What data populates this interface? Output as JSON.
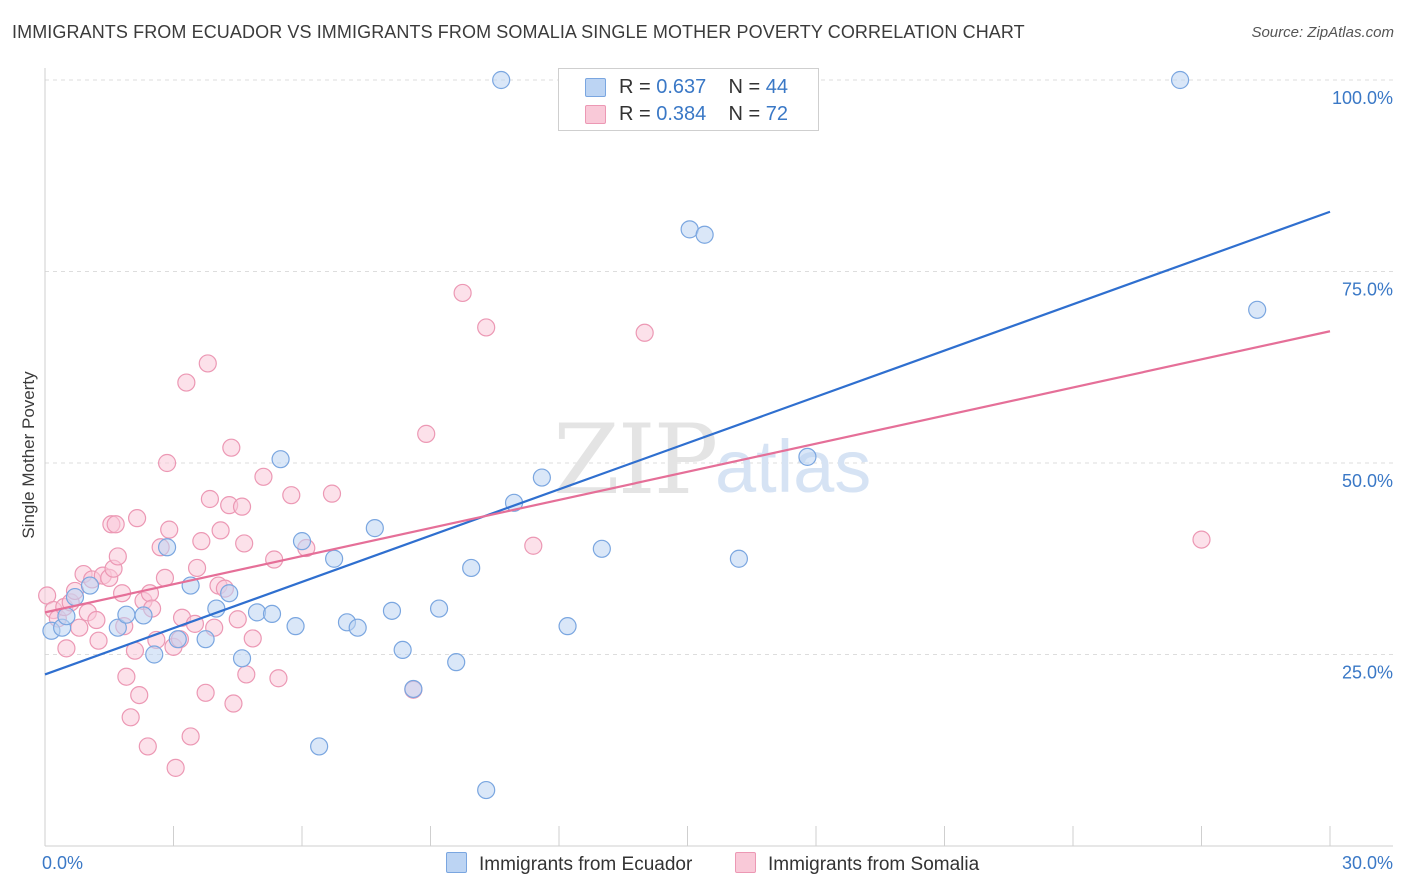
{
  "title": "IMMIGRANTS FROM ECUADOR VS IMMIGRANTS FROM SOMALIA SINGLE MOTHER POVERTY CORRELATION CHART",
  "source": "Source: ZipAtlas.com",
  "watermark": {
    "zip": "ZIP",
    "atlas": "atlas"
  },
  "legend": {
    "r_label": "R =",
    "n_label": "N =",
    "ecuador": {
      "r": "0.637",
      "n": "44"
    },
    "somalia": {
      "r": "0.384",
      "n": "72"
    }
  },
  "bottom_legend": {
    "ecuador": "Immigrants from Ecuador",
    "somalia": "Immigrants from Somalia"
  },
  "colors": {
    "ecuador_fill": "#bcd4f3",
    "ecuador_stroke": "#7aa6e0",
    "ecuador_line": "#2f6fcf",
    "somalia_fill": "#f9c9d8",
    "somalia_stroke": "#ec98b4",
    "somalia_line": "#e56f98",
    "tick_text": "#3a78c6",
    "grid": "#dddddd"
  },
  "chart_data": {
    "type": "scatter",
    "title": "IMMIGRANTS FROM ECUADOR VS IMMIGRANTS FROM SOMALIA SINGLE MOTHER POVERTY CORRELATION CHART",
    "xlabel": "",
    "ylabel": "Single Mother Poverty",
    "xlim": [
      0,
      30
    ],
    "ylim": [
      0,
      100
    ],
    "x_tick_labels": {
      "0": "0.0%",
      "30": "30.0%"
    },
    "y_ticks": [
      25,
      50,
      75,
      100
    ],
    "y_tick_labels": [
      "25.0%",
      "50.0%",
      "75.0%",
      "100.0%"
    ],
    "series": [
      {
        "name": "Immigrants from Ecuador",
        "color": "#7aa6e0",
        "points": [
          [
            0.15,
            28.1
          ],
          [
            0.4,
            28.5
          ],
          [
            0.5,
            30
          ],
          [
            0.7,
            32.5
          ],
          [
            1.05,
            34
          ],
          [
            1.7,
            28.5
          ],
          [
            1.9,
            30.2
          ],
          [
            2.3,
            30.1
          ],
          [
            2.55,
            25
          ],
          [
            2.85,
            39
          ],
          [
            3.1,
            27
          ],
          [
            3.4,
            34
          ],
          [
            3.75,
            27
          ],
          [
            4,
            31
          ],
          [
            4.3,
            33
          ],
          [
            4.6,
            24.5
          ],
          [
            4.95,
            30.5
          ],
          [
            5.3,
            30.3
          ],
          [
            5.5,
            50.5
          ],
          [
            5.85,
            28.7
          ],
          [
            6,
            39.8
          ],
          [
            6.4,
            13
          ],
          [
            6.75,
            37.5
          ],
          [
            7.05,
            29.2
          ],
          [
            7.3,
            28.5
          ],
          [
            7.7,
            41.5
          ],
          [
            8.1,
            30.7
          ],
          [
            8.35,
            25.6
          ],
          [
            8.6,
            20.5
          ],
          [
            9.2,
            31
          ],
          [
            9.6,
            24
          ],
          [
            9.95,
            36.3
          ],
          [
            10.3,
            7.3
          ],
          [
            10.65,
            100
          ],
          [
            10.95,
            44.8
          ],
          [
            11.6,
            48.1
          ],
          [
            12.2,
            28.7
          ],
          [
            13,
            38.8
          ],
          [
            15.05,
            80.5
          ],
          [
            15.4,
            79.8
          ],
          [
            16.2,
            37.5
          ],
          [
            17.8,
            50.8
          ],
          [
            26.5,
            100
          ],
          [
            28.3,
            70
          ]
        ]
      },
      {
        "name": "Immigrants from Somalia",
        "color": "#ec98b4",
        "points": [
          [
            0.05,
            32.7
          ],
          [
            0.2,
            30.8
          ],
          [
            0.3,
            29.7
          ],
          [
            0.45,
            31.2
          ],
          [
            0.5,
            25.8
          ],
          [
            0.6,
            31.8
          ],
          [
            0.7,
            33.3
          ],
          [
            0.8,
            28.5
          ],
          [
            0.9,
            35.5
          ],
          [
            1.0,
            30.5
          ],
          [
            1.1,
            34.8
          ],
          [
            1.2,
            29.5
          ],
          [
            1.25,
            26.8
          ],
          [
            1.35,
            35.3
          ],
          [
            1.5,
            35
          ],
          [
            1.55,
            42
          ],
          [
            1.6,
            36.2
          ],
          [
            1.65,
            42
          ],
          [
            1.7,
            37.8
          ],
          [
            1.8,
            33
          ],
          [
            1.85,
            28.7
          ],
          [
            1.9,
            22.1
          ],
          [
            2.0,
            16.8
          ],
          [
            2.1,
            25.5
          ],
          [
            2.15,
            42.8
          ],
          [
            2.2,
            19.7
          ],
          [
            2.3,
            32
          ],
          [
            2.4,
            13
          ],
          [
            2.45,
            33
          ],
          [
            2.5,
            31
          ],
          [
            2.6,
            26.9
          ],
          [
            2.7,
            39
          ],
          [
            2.8,
            35
          ],
          [
            2.85,
            50
          ],
          [
            2.9,
            41.3
          ],
          [
            3.0,
            26
          ],
          [
            3.05,
            10.2
          ],
          [
            3.15,
            27
          ],
          [
            3.2,
            29.8
          ],
          [
            3.3,
            60.5
          ],
          [
            3.4,
            14.3
          ],
          [
            3.5,
            29
          ],
          [
            3.55,
            36.3
          ],
          [
            3.65,
            39.8
          ],
          [
            3.75,
            20
          ],
          [
            3.8,
            63
          ],
          [
            3.85,
            45.3
          ],
          [
            3.95,
            28.5
          ],
          [
            4.05,
            34
          ],
          [
            4.1,
            41.2
          ],
          [
            4.2,
            33.6
          ],
          [
            4.3,
            44.5
          ],
          [
            4.35,
            52
          ],
          [
            4.4,
            18.6
          ],
          [
            4.5,
            29.6
          ],
          [
            4.6,
            44.3
          ],
          [
            4.65,
            39.5
          ],
          [
            4.7,
            22.4
          ],
          [
            4.85,
            27.1
          ],
          [
            5.1,
            48.2
          ],
          [
            5.35,
            37.4
          ],
          [
            5.45,
            21.9
          ],
          [
            5.75,
            45.8
          ],
          [
            6.1,
            38.9
          ],
          [
            6.7,
            46
          ],
          [
            8.6,
            20.4
          ],
          [
            8.9,
            53.8
          ],
          [
            9.75,
            72.2
          ],
          [
            10.3,
            67.7
          ],
          [
            11.4,
            39.2
          ],
          [
            14.0,
            67
          ],
          [
            27.0,
            40
          ]
        ]
      }
    ],
    "trendlines": [
      {
        "name": "Immigrants from Ecuador",
        "x": [
          0,
          30
        ],
        "y": [
          22.4,
          82.8
        ]
      },
      {
        "name": "Immigrants from Somalia",
        "x": [
          0,
          30
        ],
        "y": [
          30.5,
          67.2
        ]
      }
    ]
  }
}
